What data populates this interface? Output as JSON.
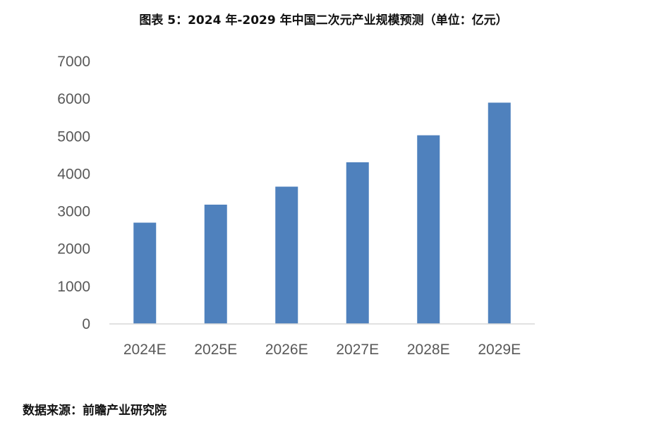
{
  "title": "图表 5：2024 年-2029 年中国二次元产业规模预测（单位：亿元）",
  "source": "数据来源：前瞻产业研究院",
  "chart_data": {
    "type": "bar",
    "title": "图表 5：2024 年-2029 年中国二次元产业规模预测（单位：亿元）",
    "unit": "亿元",
    "categories": [
      "2024E",
      "2025E",
      "2026E",
      "2027E",
      "2028E",
      "2029E"
    ],
    "values": [
      2700,
      3180,
      3660,
      4310,
      5030,
      5900
    ],
    "ylim": [
      0,
      7000
    ],
    "yticks": [
      0,
      1000,
      2000,
      3000,
      4000,
      5000,
      6000,
      7000
    ],
    "bar_color": "#4F81BD",
    "grid": false,
    "legend": "none",
    "xlabel": "",
    "ylabel": ""
  }
}
